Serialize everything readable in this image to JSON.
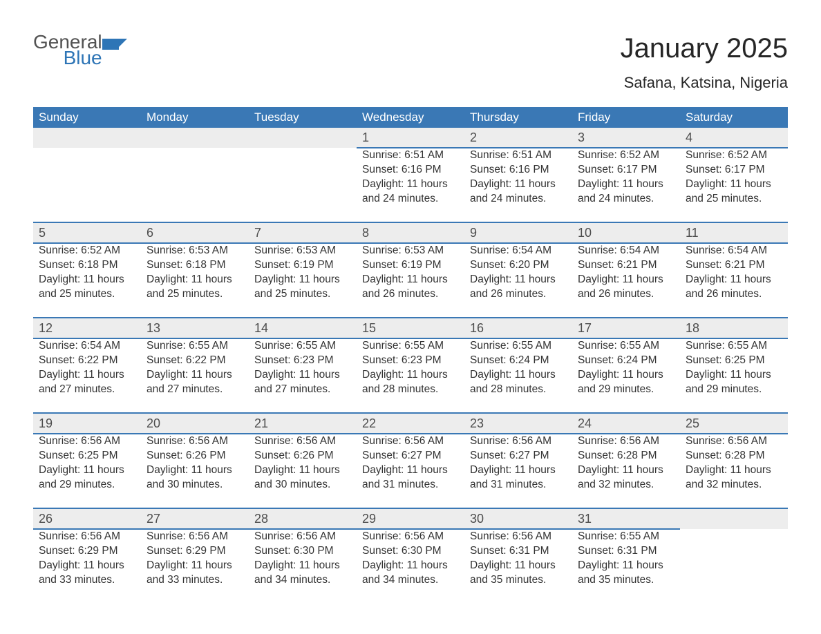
{
  "logo": {
    "general": "General",
    "blue": "Blue",
    "icon_color": "#2e75b6"
  },
  "header": {
    "title": "January 2025",
    "location": "Safana, Katsina, Nigeria",
    "title_fontsize": 40,
    "location_fontsize": 22
  },
  "calendar": {
    "type": "table",
    "header_bg": "#3a78b5",
    "header_fg": "#ffffff",
    "daynum_bg": "#ededed",
    "rule_color": "#3a78b5",
    "background_color": "#ffffff",
    "days": [
      "Sunday",
      "Monday",
      "Tuesday",
      "Wednesday",
      "Thursday",
      "Friday",
      "Saturday"
    ],
    "weeks": [
      [
        null,
        null,
        null,
        {
          "n": "1",
          "sunrise": "6:51 AM",
          "sunset": "6:16 PM",
          "daylight": "11 hours and 24 minutes."
        },
        {
          "n": "2",
          "sunrise": "6:51 AM",
          "sunset": "6:16 PM",
          "daylight": "11 hours and 24 minutes."
        },
        {
          "n": "3",
          "sunrise": "6:52 AM",
          "sunset": "6:17 PM",
          "daylight": "11 hours and 24 minutes."
        },
        {
          "n": "4",
          "sunrise": "6:52 AM",
          "sunset": "6:17 PM",
          "daylight": "11 hours and 25 minutes."
        }
      ],
      [
        {
          "n": "5",
          "sunrise": "6:52 AM",
          "sunset": "6:18 PM",
          "daylight": "11 hours and 25 minutes."
        },
        {
          "n": "6",
          "sunrise": "6:53 AM",
          "sunset": "6:18 PM",
          "daylight": "11 hours and 25 minutes."
        },
        {
          "n": "7",
          "sunrise": "6:53 AM",
          "sunset": "6:19 PM",
          "daylight": "11 hours and 25 minutes."
        },
        {
          "n": "8",
          "sunrise": "6:53 AM",
          "sunset": "6:19 PM",
          "daylight": "11 hours and 26 minutes."
        },
        {
          "n": "9",
          "sunrise": "6:54 AM",
          "sunset": "6:20 PM",
          "daylight": "11 hours and 26 minutes."
        },
        {
          "n": "10",
          "sunrise": "6:54 AM",
          "sunset": "6:21 PM",
          "daylight": "11 hours and 26 minutes."
        },
        {
          "n": "11",
          "sunrise": "6:54 AM",
          "sunset": "6:21 PM",
          "daylight": "11 hours and 26 minutes."
        }
      ],
      [
        {
          "n": "12",
          "sunrise": "6:54 AM",
          "sunset": "6:22 PM",
          "daylight": "11 hours and 27 minutes."
        },
        {
          "n": "13",
          "sunrise": "6:55 AM",
          "sunset": "6:22 PM",
          "daylight": "11 hours and 27 minutes."
        },
        {
          "n": "14",
          "sunrise": "6:55 AM",
          "sunset": "6:23 PM",
          "daylight": "11 hours and 27 minutes."
        },
        {
          "n": "15",
          "sunrise": "6:55 AM",
          "sunset": "6:23 PM",
          "daylight": "11 hours and 28 minutes."
        },
        {
          "n": "16",
          "sunrise": "6:55 AM",
          "sunset": "6:24 PM",
          "daylight": "11 hours and 28 minutes."
        },
        {
          "n": "17",
          "sunrise": "6:55 AM",
          "sunset": "6:24 PM",
          "daylight": "11 hours and 29 minutes."
        },
        {
          "n": "18",
          "sunrise": "6:55 AM",
          "sunset": "6:25 PM",
          "daylight": "11 hours and 29 minutes."
        }
      ],
      [
        {
          "n": "19",
          "sunrise": "6:56 AM",
          "sunset": "6:25 PM",
          "daylight": "11 hours and 29 minutes."
        },
        {
          "n": "20",
          "sunrise": "6:56 AM",
          "sunset": "6:26 PM",
          "daylight": "11 hours and 30 minutes."
        },
        {
          "n": "21",
          "sunrise": "6:56 AM",
          "sunset": "6:26 PM",
          "daylight": "11 hours and 30 minutes."
        },
        {
          "n": "22",
          "sunrise": "6:56 AM",
          "sunset": "6:27 PM",
          "daylight": "11 hours and 31 minutes."
        },
        {
          "n": "23",
          "sunrise": "6:56 AM",
          "sunset": "6:27 PM",
          "daylight": "11 hours and 31 minutes."
        },
        {
          "n": "24",
          "sunrise": "6:56 AM",
          "sunset": "6:28 PM",
          "daylight": "11 hours and 32 minutes."
        },
        {
          "n": "25",
          "sunrise": "6:56 AM",
          "sunset": "6:28 PM",
          "daylight": "11 hours and 32 minutes."
        }
      ],
      [
        {
          "n": "26",
          "sunrise": "6:56 AM",
          "sunset": "6:29 PM",
          "daylight": "11 hours and 33 minutes."
        },
        {
          "n": "27",
          "sunrise": "6:56 AM",
          "sunset": "6:29 PM",
          "daylight": "11 hours and 33 minutes."
        },
        {
          "n": "28",
          "sunrise": "6:56 AM",
          "sunset": "6:30 PM",
          "daylight": "11 hours and 34 minutes."
        },
        {
          "n": "29",
          "sunrise": "6:56 AM",
          "sunset": "6:30 PM",
          "daylight": "11 hours and 34 minutes."
        },
        {
          "n": "30",
          "sunrise": "6:56 AM",
          "sunset": "6:31 PM",
          "daylight": "11 hours and 35 minutes."
        },
        {
          "n": "31",
          "sunrise": "6:55 AM",
          "sunset": "6:31 PM",
          "daylight": "11 hours and 35 minutes."
        },
        null
      ]
    ],
    "labels": {
      "sunrise": "Sunrise: ",
      "sunset": "Sunset: ",
      "daylight": "Daylight: "
    }
  }
}
